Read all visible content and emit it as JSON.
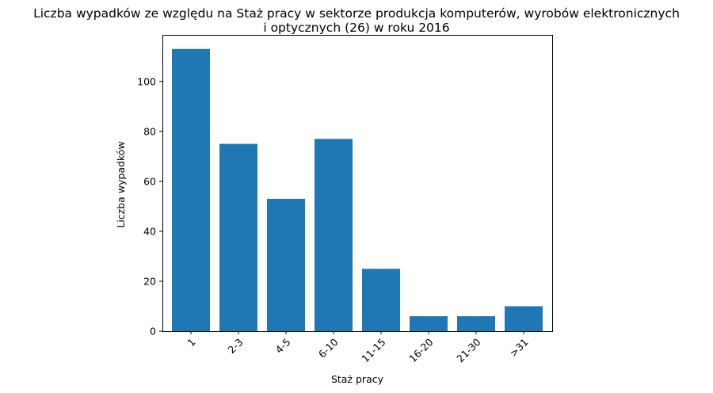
{
  "chart_data": {
    "type": "bar",
    "title_lines": [
      "Liczba wypadków ze względu na Staż pracy w sektorze produkcja komputerów, wyrobów elektronicznych",
      "i optycznych (26)  w roku 2016"
    ],
    "xlabel": "Staż pracy",
    "ylabel": "Liczba wypadków",
    "categories": [
      "1",
      "2-3",
      "4-5",
      "6-10",
      "11-15",
      "16-20",
      "21-30",
      ">31"
    ],
    "values": [
      113,
      75,
      53,
      77,
      25,
      6,
      6,
      10
    ],
    "ylim": [
      0,
      118.65
    ],
    "yticks": [
      0,
      20,
      40,
      60,
      80,
      100
    ],
    "x_tick_rotation_deg": 45,
    "grid": false,
    "legend": "none",
    "bar_color": "#1f77b4"
  }
}
